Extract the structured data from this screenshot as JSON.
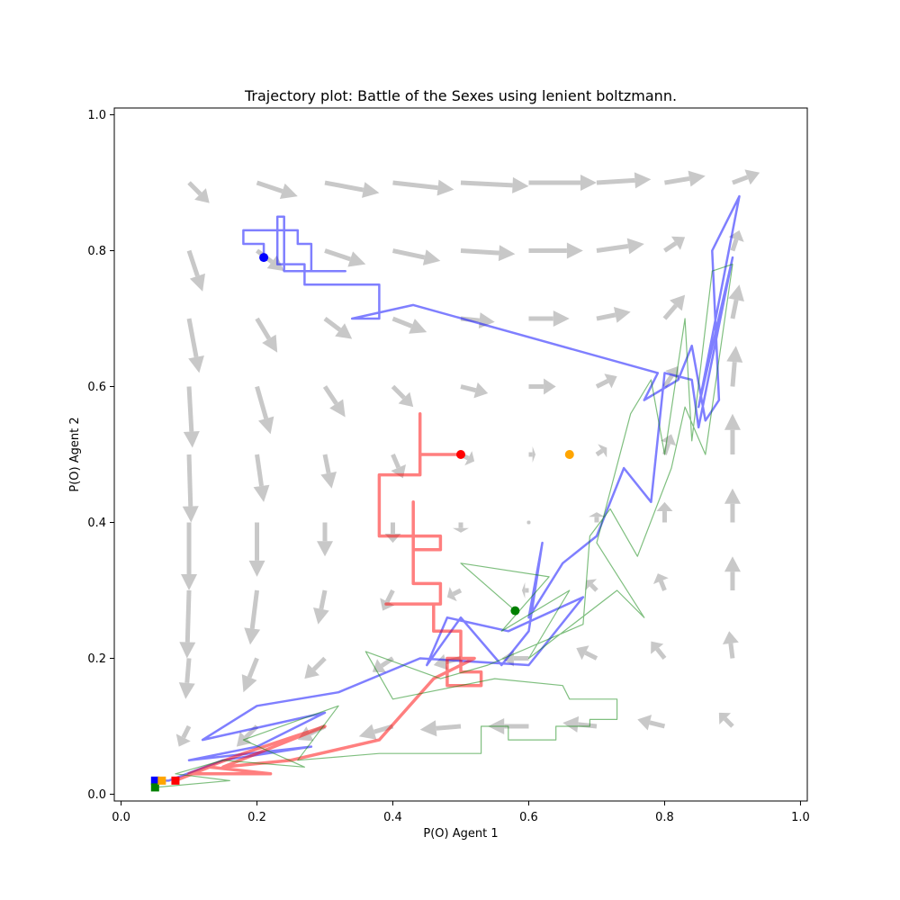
{
  "chart_data": {
    "type": "line",
    "title": "Trajectory plot: Battle of the Sexes using lenient boltzmann.",
    "xlabel": "P(O) Agent 1",
    "ylabel": "P(O) Agent 2",
    "xlim": [
      -0.01,
      1.01
    ],
    "ylim": [
      -0.01,
      1.01
    ],
    "xticks": [
      0.0,
      0.2,
      0.4,
      0.6,
      0.8,
      1.0
    ],
    "yticks": [
      0.0,
      0.2,
      0.4,
      0.6,
      0.8,
      1.0
    ],
    "xtick_labels": [
      "0.0",
      "0.2",
      "0.4",
      "0.6",
      "0.8",
      "1.0"
    ],
    "ytick_labels": [
      "0.0",
      "0.2",
      "0.4",
      "0.6",
      "0.8",
      "1.0"
    ],
    "grid": false,
    "quiver": {
      "color": "#c8c8c8",
      "arrows": [
        {
          "x": 0.1,
          "y": 0.9,
          "dx": 0.03,
          "dy": -0.03
        },
        {
          "x": 0.2,
          "y": 0.9,
          "dx": 0.06,
          "dy": -0.02
        },
        {
          "x": 0.3,
          "y": 0.9,
          "dx": 0.08,
          "dy": -0.015
        },
        {
          "x": 0.4,
          "y": 0.9,
          "dx": 0.09,
          "dy": -0.01
        },
        {
          "x": 0.5,
          "y": 0.9,
          "dx": 0.1,
          "dy": -0.005
        },
        {
          "x": 0.6,
          "y": 0.9,
          "dx": 0.1,
          "dy": 0.0
        },
        {
          "x": 0.7,
          "y": 0.9,
          "dx": 0.08,
          "dy": 0.005
        },
        {
          "x": 0.8,
          "y": 0.9,
          "dx": 0.06,
          "dy": 0.01
        },
        {
          "x": 0.9,
          "y": 0.9,
          "dx": 0.04,
          "dy": 0.015
        },
        {
          "x": 0.1,
          "y": 0.8,
          "dx": 0.02,
          "dy": -0.06
        },
        {
          "x": 0.2,
          "y": 0.8,
          "dx": 0.04,
          "dy": -0.03
        },
        {
          "x": 0.3,
          "y": 0.8,
          "dx": 0.06,
          "dy": -0.02
        },
        {
          "x": 0.4,
          "y": 0.8,
          "dx": 0.07,
          "dy": -0.015
        },
        {
          "x": 0.5,
          "y": 0.8,
          "dx": 0.08,
          "dy": -0.005
        },
        {
          "x": 0.6,
          "y": 0.8,
          "dx": 0.08,
          "dy": 0.0
        },
        {
          "x": 0.7,
          "y": 0.8,
          "dx": 0.07,
          "dy": 0.01
        },
        {
          "x": 0.8,
          "y": 0.8,
          "dx": 0.03,
          "dy": 0.02
        },
        {
          "x": 0.9,
          "y": 0.8,
          "dx": 0.01,
          "dy": 0.03
        },
        {
          "x": 0.1,
          "y": 0.7,
          "dx": 0.015,
          "dy": -0.08
        },
        {
          "x": 0.2,
          "y": 0.7,
          "dx": 0.03,
          "dy": -0.05
        },
        {
          "x": 0.3,
          "y": 0.7,
          "dx": 0.04,
          "dy": -0.03
        },
        {
          "x": 0.4,
          "y": 0.7,
          "dx": 0.05,
          "dy": -0.02
        },
        {
          "x": 0.5,
          "y": 0.7,
          "dx": 0.05,
          "dy": -0.005
        },
        {
          "x": 0.6,
          "y": 0.7,
          "dx": 0.06,
          "dy": 0.0
        },
        {
          "x": 0.7,
          "y": 0.7,
          "dx": 0.05,
          "dy": 0.01
        },
        {
          "x": 0.8,
          "y": 0.7,
          "dx": 0.03,
          "dy": 0.035
        },
        {
          "x": 0.9,
          "y": 0.7,
          "dx": 0.01,
          "dy": 0.05
        },
        {
          "x": 0.1,
          "y": 0.6,
          "dx": 0.005,
          "dy": -0.09
        },
        {
          "x": 0.2,
          "y": 0.6,
          "dx": 0.02,
          "dy": -0.07
        },
        {
          "x": 0.3,
          "y": 0.6,
          "dx": 0.03,
          "dy": -0.045
        },
        {
          "x": 0.4,
          "y": 0.6,
          "dx": 0.03,
          "dy": -0.03
        },
        {
          "x": 0.5,
          "y": 0.6,
          "dx": 0.04,
          "dy": -0.01
        },
        {
          "x": 0.6,
          "y": 0.6,
          "dx": 0.04,
          "dy": 0.0
        },
        {
          "x": 0.7,
          "y": 0.6,
          "dx": 0.03,
          "dy": 0.015
        },
        {
          "x": 0.8,
          "y": 0.6,
          "dx": 0.02,
          "dy": 0.03
        },
        {
          "x": 0.9,
          "y": 0.6,
          "dx": 0.005,
          "dy": 0.06
        },
        {
          "x": 0.1,
          "y": 0.5,
          "dx": 0.003,
          "dy": -0.1
        },
        {
          "x": 0.2,
          "y": 0.5,
          "dx": 0.01,
          "dy": -0.07
        },
        {
          "x": 0.3,
          "y": 0.5,
          "dx": 0.01,
          "dy": -0.05
        },
        {
          "x": 0.4,
          "y": 0.5,
          "dx": 0.015,
          "dy": -0.035
        },
        {
          "x": 0.5,
          "y": 0.5,
          "dx": 0.02,
          "dy": -0.01
        },
        {
          "x": 0.6,
          "y": 0.5,
          "dx": 0.01,
          "dy": 0.0
        },
        {
          "x": 0.7,
          "y": 0.5,
          "dx": 0.015,
          "dy": 0.01
        },
        {
          "x": 0.8,
          "y": 0.5,
          "dx": 0.01,
          "dy": 0.03
        },
        {
          "x": 0.9,
          "y": 0.5,
          "dx": 0.0,
          "dy": 0.06
        },
        {
          "x": 0.1,
          "y": 0.4,
          "dx": 0.0,
          "dy": -0.1
        },
        {
          "x": 0.2,
          "y": 0.4,
          "dx": 0.0,
          "dy": -0.08
        },
        {
          "x": 0.3,
          "y": 0.4,
          "dx": 0.0,
          "dy": -0.05
        },
        {
          "x": 0.4,
          "y": 0.4,
          "dx": 0.0,
          "dy": -0.03
        },
        {
          "x": 0.5,
          "y": 0.4,
          "dx": 0.0,
          "dy": -0.015
        },
        {
          "x": 0.6,
          "y": 0.4,
          "dx": 0.0,
          "dy": 0.0
        },
        {
          "x": 0.7,
          "y": 0.4,
          "dx": 0.0,
          "dy": 0.015
        },
        {
          "x": 0.8,
          "y": 0.4,
          "dx": 0.0,
          "dy": 0.03
        },
        {
          "x": 0.9,
          "y": 0.4,
          "dx": 0.0,
          "dy": 0.05
        },
        {
          "x": 0.1,
          "y": 0.3,
          "dx": -0.003,
          "dy": -0.1
        },
        {
          "x": 0.2,
          "y": 0.3,
          "dx": -0.01,
          "dy": -0.08
        },
        {
          "x": 0.3,
          "y": 0.3,
          "dx": -0.01,
          "dy": -0.05
        },
        {
          "x": 0.4,
          "y": 0.3,
          "dx": -0.015,
          "dy": -0.03
        },
        {
          "x": 0.5,
          "y": 0.3,
          "dx": -0.02,
          "dy": -0.01
        },
        {
          "x": 0.6,
          "y": 0.3,
          "dx": -0.01,
          "dy": 0.0
        },
        {
          "x": 0.7,
          "y": 0.3,
          "dx": -0.015,
          "dy": 0.015
        },
        {
          "x": 0.8,
          "y": 0.3,
          "dx": -0.01,
          "dy": 0.025
        },
        {
          "x": 0.9,
          "y": 0.3,
          "dx": 0.0,
          "dy": 0.05
        },
        {
          "x": 0.1,
          "y": 0.2,
          "dx": -0.005,
          "dy": -0.06
        },
        {
          "x": 0.2,
          "y": 0.2,
          "dx": -0.02,
          "dy": -0.05
        },
        {
          "x": 0.3,
          "y": 0.2,
          "dx": -0.03,
          "dy": -0.03
        },
        {
          "x": 0.4,
          "y": 0.2,
          "dx": -0.03,
          "dy": -0.02
        },
        {
          "x": 0.5,
          "y": 0.2,
          "dx": -0.04,
          "dy": -0.01
        },
        {
          "x": 0.6,
          "y": 0.2,
          "dx": -0.04,
          "dy": 0.0
        },
        {
          "x": 0.7,
          "y": 0.2,
          "dx": -0.03,
          "dy": 0.015
        },
        {
          "x": 0.8,
          "y": 0.2,
          "dx": -0.02,
          "dy": 0.025
        },
        {
          "x": 0.9,
          "y": 0.2,
          "dx": -0.005,
          "dy": 0.04
        },
        {
          "x": 0.1,
          "y": 0.1,
          "dx": -0.015,
          "dy": -0.03
        },
        {
          "x": 0.2,
          "y": 0.1,
          "dx": -0.03,
          "dy": -0.03
        },
        {
          "x": 0.3,
          "y": 0.1,
          "dx": -0.04,
          "dy": -0.02
        },
        {
          "x": 0.4,
          "y": 0.1,
          "dx": -0.05,
          "dy": -0.015
        },
        {
          "x": 0.5,
          "y": 0.1,
          "dx": -0.06,
          "dy": -0.005
        },
        {
          "x": 0.6,
          "y": 0.1,
          "dx": -0.06,
          "dy": 0.0
        },
        {
          "x": 0.7,
          "y": 0.1,
          "dx": -0.05,
          "dy": 0.005
        },
        {
          "x": 0.8,
          "y": 0.1,
          "dx": -0.04,
          "dy": 0.01
        },
        {
          "x": 0.9,
          "y": 0.1,
          "dx": -0.02,
          "dy": 0.02
        }
      ]
    },
    "series": [
      {
        "color": "#0000ff",
        "opacity": 0.5,
        "width": 2.5,
        "start": [
          0.21,
          0.79
        ],
        "end": [
          0.05,
          0.02
        ],
        "points": [
          [
            0.21,
            0.79
          ],
          [
            0.21,
            0.81
          ],
          [
            0.18,
            0.81
          ],
          [
            0.18,
            0.83
          ],
          [
            0.26,
            0.83
          ],
          [
            0.26,
            0.81
          ],
          [
            0.28,
            0.81
          ],
          [
            0.28,
            0.77
          ],
          [
            0.33,
            0.77
          ],
          [
            0.24,
            0.77
          ],
          [
            0.24,
            0.85
          ],
          [
            0.23,
            0.85
          ],
          [
            0.23,
            0.78
          ],
          [
            0.27,
            0.78
          ],
          [
            0.27,
            0.75
          ],
          [
            0.38,
            0.75
          ],
          [
            0.38,
            0.7
          ],
          [
            0.34,
            0.7
          ],
          [
            0.43,
            0.72
          ],
          [
            0.79,
            0.62
          ],
          [
            0.77,
            0.58
          ],
          [
            0.82,
            0.61
          ],
          [
            0.84,
            0.66
          ],
          [
            0.86,
            0.55
          ],
          [
            0.88,
            0.58
          ],
          [
            0.87,
            0.8
          ],
          [
            0.91,
            0.88
          ],
          [
            0.85,
            0.57
          ],
          [
            0.9,
            0.79
          ],
          [
            0.85,
            0.54
          ],
          [
            0.84,
            0.61
          ],
          [
            0.8,
            0.62
          ],
          [
            0.78,
            0.43
          ],
          [
            0.74,
            0.48
          ],
          [
            0.7,
            0.38
          ],
          [
            0.65,
            0.34
          ],
          [
            0.6,
            0.26
          ],
          [
            0.62,
            0.37
          ],
          [
            0.6,
            0.24
          ],
          [
            0.56,
            0.19
          ],
          [
            0.5,
            0.26
          ],
          [
            0.45,
            0.19
          ],
          [
            0.48,
            0.26
          ],
          [
            0.57,
            0.24
          ],
          [
            0.68,
            0.29
          ],
          [
            0.6,
            0.19
          ],
          [
            0.44,
            0.2
          ],
          [
            0.32,
            0.15
          ],
          [
            0.2,
            0.13
          ],
          [
            0.12,
            0.08
          ],
          [
            0.3,
            0.12
          ],
          [
            0.2,
            0.07
          ],
          [
            0.1,
            0.05
          ],
          [
            0.28,
            0.07
          ],
          [
            0.15,
            0.05
          ],
          [
            0.07,
            0.02
          ],
          [
            0.05,
            0.02
          ]
        ]
      },
      {
        "color": "#ff0000",
        "opacity": 0.5,
        "width": 3.5,
        "start": [
          0.5,
          0.5
        ],
        "end": [
          0.08,
          0.02
        ],
        "points": [
          [
            0.5,
            0.5
          ],
          [
            0.44,
            0.5
          ],
          [
            0.44,
            0.56
          ],
          [
            0.44,
            0.47
          ],
          [
            0.38,
            0.47
          ],
          [
            0.38,
            0.38
          ],
          [
            0.47,
            0.38
          ],
          [
            0.47,
            0.36
          ],
          [
            0.43,
            0.36
          ],
          [
            0.43,
            0.43
          ],
          [
            0.43,
            0.31
          ],
          [
            0.47,
            0.31
          ],
          [
            0.47,
            0.28
          ],
          [
            0.39,
            0.28
          ],
          [
            0.46,
            0.28
          ],
          [
            0.46,
            0.24
          ],
          [
            0.5,
            0.24
          ],
          [
            0.5,
            0.18
          ],
          [
            0.53,
            0.18
          ],
          [
            0.53,
            0.16
          ],
          [
            0.48,
            0.16
          ],
          [
            0.48,
            0.2
          ],
          [
            0.52,
            0.2
          ],
          [
            0.46,
            0.17
          ],
          [
            0.38,
            0.08
          ],
          [
            0.25,
            0.05
          ],
          [
            0.15,
            0.04
          ],
          [
            0.3,
            0.1
          ],
          [
            0.18,
            0.06
          ],
          [
            0.1,
            0.03
          ],
          [
            0.22,
            0.03
          ],
          [
            0.13,
            0.04
          ],
          [
            0.08,
            0.02
          ]
        ]
      },
      {
        "color": "#008000",
        "opacity": 0.5,
        "width": 1.2,
        "start": [
          0.58,
          0.27
        ],
        "end": [
          0.05,
          0.01
        ],
        "points": [
          [
            0.58,
            0.27
          ],
          [
            0.5,
            0.34
          ],
          [
            0.63,
            0.32
          ],
          [
            0.56,
            0.24
          ],
          [
            0.66,
            0.3
          ],
          [
            0.6,
            0.2
          ],
          [
            0.73,
            0.3
          ],
          [
            0.77,
            0.26
          ],
          [
            0.7,
            0.37
          ],
          [
            0.75,
            0.56
          ],
          [
            0.78,
            0.61
          ],
          [
            0.8,
            0.5
          ],
          [
            0.83,
            0.7
          ],
          [
            0.84,
            0.52
          ],
          [
            0.87,
            0.77
          ],
          [
            0.9,
            0.78
          ],
          [
            0.86,
            0.5
          ],
          [
            0.83,
            0.57
          ],
          [
            0.81,
            0.48
          ],
          [
            0.76,
            0.35
          ],
          [
            0.72,
            0.42
          ],
          [
            0.69,
            0.38
          ],
          [
            0.68,
            0.25
          ],
          [
            0.54,
            0.19
          ],
          [
            0.47,
            0.17
          ],
          [
            0.36,
            0.21
          ],
          [
            0.4,
            0.14
          ],
          [
            0.55,
            0.17
          ],
          [
            0.65,
            0.16
          ],
          [
            0.66,
            0.14
          ],
          [
            0.73,
            0.14
          ],
          [
            0.73,
            0.11
          ],
          [
            0.69,
            0.11
          ],
          [
            0.69,
            0.1
          ],
          [
            0.64,
            0.1
          ],
          [
            0.64,
            0.08
          ],
          [
            0.57,
            0.08
          ],
          [
            0.57,
            0.1
          ],
          [
            0.53,
            0.1
          ],
          [
            0.53,
            0.06
          ],
          [
            0.49,
            0.06
          ],
          [
            0.38,
            0.06
          ],
          [
            0.26,
            0.05
          ],
          [
            0.32,
            0.13
          ],
          [
            0.18,
            0.08
          ],
          [
            0.27,
            0.04
          ],
          [
            0.15,
            0.05
          ],
          [
            0.08,
            0.03
          ],
          [
            0.16,
            0.02
          ],
          [
            0.05,
            0.01
          ]
        ]
      }
    ],
    "extra_points": [
      {
        "x": 0.66,
        "y": 0.5,
        "color": "#ffa500",
        "marker": "circle"
      },
      {
        "x": 0.06,
        "y": 0.02,
        "color": "#ffa500",
        "marker": "square"
      },
      {
        "x": 0.6,
        "y": 0.4,
        "color": "#c8c8c8",
        "marker": "dot"
      }
    ]
  }
}
